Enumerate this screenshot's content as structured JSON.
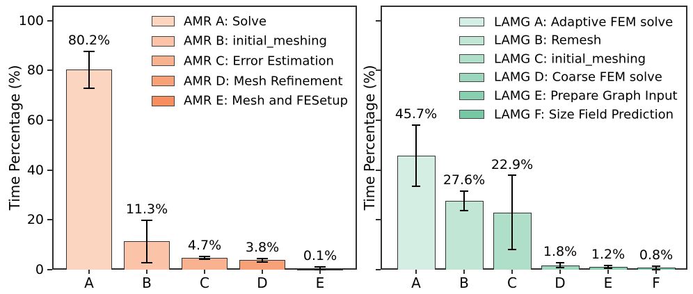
{
  "figure_title": "",
  "accent_colors": {
    "spine": "#2e2e2e",
    "bar_edge": "#333333",
    "error_bar": "#000000",
    "background": "#ffffff"
  },
  "chart_data": [
    {
      "type": "bar",
      "panel": "left",
      "ylabel": "Time Percentage (%)",
      "ylim": [
        0,
        106
      ],
      "yticks": [
        0,
        20,
        40,
        60,
        80,
        100
      ],
      "show_ytick_labels": true,
      "grid": false,
      "legend_position": "upper right",
      "legend_frame": false,
      "categories": [
        "A",
        "B",
        "C",
        "D",
        "E"
      ],
      "values": [
        80.2,
        11.3,
        4.7,
        3.8,
        0.1
      ],
      "errors": [
        7.5,
        8.4,
        0.5,
        0.8,
        0.9
      ],
      "value_labels": [
        "80.2%",
        "11.3%",
        "4.7%",
        "3.8%",
        "0.1%"
      ],
      "bar_colors": [
        "#fcd5c0",
        "#fbc3a7",
        "#f9b28f",
        "#f8a077",
        "#f68e5f"
      ],
      "legend": [
        {
          "label": "AMR A: Solve",
          "color": "#fcd5c0"
        },
        {
          "label": "AMR B: initial_meshing",
          "color": "#fbc3a7"
        },
        {
          "label": "AMR C: Error Estimation",
          "color": "#f9b28f"
        },
        {
          "label": "AMR D: Mesh Refinement",
          "color": "#f8a077"
        },
        {
          "label": "AMR E: Mesh and FESetup",
          "color": "#f68e5f"
        }
      ]
    },
    {
      "type": "bar",
      "panel": "right",
      "ylabel": "Time Percentage (%)",
      "ylim": [
        0,
        106
      ],
      "yticks": [
        0,
        20,
        40,
        60,
        80,
        100
      ],
      "show_ytick_labels": false,
      "grid": false,
      "legend_position": "upper right",
      "legend_frame": false,
      "categories": [
        "A",
        "B",
        "C",
        "D",
        "E",
        "F"
      ],
      "values": [
        45.7,
        27.6,
        22.9,
        1.8,
        1.2,
        0.8
      ],
      "errors": [
        12.3,
        4.0,
        14.9,
        1.0,
        0.6,
        0.7
      ],
      "value_labels": [
        "45.7%",
        "27.6%",
        "22.9%",
        "1.8%",
        "1.2%",
        "0.8%"
      ],
      "bar_colors": [
        "#d5eee3",
        "#c2e6d6",
        "#afdfc9",
        "#9cd7bd",
        "#89d0b0",
        "#76c8a4"
      ],
      "legend": [
        {
          "label": "LAMG A: Adaptive FEM solve",
          "color": "#d5eee3"
        },
        {
          "label": "LAMG B: Remesh",
          "color": "#c2e6d6"
        },
        {
          "label": "LAMG C: initial_meshing",
          "color": "#afdfc9"
        },
        {
          "label": "LAMG D: Coarse FEM solve",
          "color": "#9cd7bd"
        },
        {
          "label": "LAMG E: Prepare Graph Input",
          "color": "#89d0b0"
        },
        {
          "label": "LAMG F: Size Field Prediction",
          "color": "#76c8a4"
        }
      ]
    }
  ]
}
